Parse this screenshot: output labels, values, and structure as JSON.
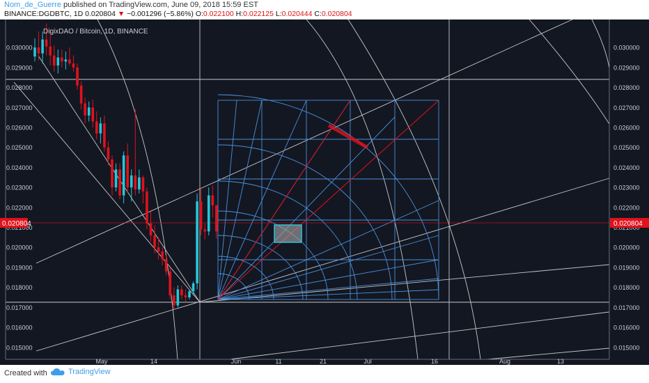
{
  "header": {
    "author": "Nom_de_Guerre",
    "published_text": "published on TradingView.com, June 09, 2018 15:59 EST",
    "symbol": "BINANCE:DGDBTC, 1D",
    "last": "0.020804",
    "change": "−0.001296 (−5.86%)",
    "o_label": "O:",
    "o_value": "0.022100",
    "h_label": "H:",
    "h_value": "0.022125",
    "l_label": "L:",
    "l_value": "0.020444",
    "c_label": "C:",
    "c_value": "0.020804"
  },
  "footer": {
    "created_with": "Created with",
    "brand": "TradingView"
  },
  "colors": {
    "up": "#26c6da",
    "down": "#e0121b",
    "price_line": "#e0121b",
    "fib": "#4a90d9",
    "gann": "#ffffff"
  },
  "chart_data": {
    "type": "candlestick",
    "title": "DigixDAO / Bitcoin, 1D, BINANCE",
    "ylim": [
      0.0144,
      0.0314
    ],
    "y_ticks": [
      "0.030000",
      "0.029000",
      "0.028000",
      "0.027000",
      "0.026000",
      "0.025000",
      "0.024000",
      "0.023000",
      "0.022000",
      "0.021000",
      "0.020000",
      "0.019000",
      "0.018000",
      "0.017000",
      "0.016000",
      "0.015000"
    ],
    "last_price_label": "0.020804",
    "x_ticks": [
      "May",
      "14",
      "Jun",
      "11",
      "21",
      "Jul",
      "16",
      "Aug",
      "13"
    ],
    "candles": [
      {
        "o": 0.02955,
        "h": 0.03045,
        "l": 0.0293,
        "c": 0.03
      },
      {
        "o": 0.03,
        "h": 0.0308,
        "l": 0.02935,
        "c": 0.0297
      },
      {
        "o": 0.0297,
        "h": 0.0308,
        "l": 0.0292,
        "c": 0.0304
      },
      {
        "o": 0.0304,
        "h": 0.0312,
        "l": 0.0296,
        "c": 0.03005
      },
      {
        "o": 0.03005,
        "h": 0.0309,
        "l": 0.0291,
        "c": 0.0296
      },
      {
        "o": 0.0296,
        "h": 0.0301,
        "l": 0.0288,
        "c": 0.0291
      },
      {
        "o": 0.0291,
        "h": 0.0299,
        "l": 0.0287,
        "c": 0.0295
      },
      {
        "o": 0.0295,
        "h": 0.0299,
        "l": 0.029,
        "c": 0.0293
      },
      {
        "o": 0.0293,
        "h": 0.0298,
        "l": 0.0289,
        "c": 0.0294
      },
      {
        "o": 0.0294,
        "h": 0.03,
        "l": 0.0291,
        "c": 0.0292
      },
      {
        "o": 0.0292,
        "h": 0.0296,
        "l": 0.0288,
        "c": 0.029
      },
      {
        "o": 0.029,
        "h": 0.0292,
        "l": 0.0279,
        "c": 0.0281
      },
      {
        "o": 0.0281,
        "h": 0.0283,
        "l": 0.0269,
        "c": 0.0272
      },
      {
        "o": 0.0272,
        "h": 0.0275,
        "l": 0.0262,
        "c": 0.0266
      },
      {
        "o": 0.0266,
        "h": 0.0273,
        "l": 0.0263,
        "c": 0.027
      },
      {
        "o": 0.027,
        "h": 0.0274,
        "l": 0.026,
        "c": 0.0263
      },
      {
        "o": 0.0263,
        "h": 0.0268,
        "l": 0.0254,
        "c": 0.0257
      },
      {
        "o": 0.0257,
        "h": 0.0265,
        "l": 0.0252,
        "c": 0.0262
      },
      {
        "o": 0.0262,
        "h": 0.0266,
        "l": 0.0248,
        "c": 0.025
      },
      {
        "o": 0.025,
        "h": 0.0253,
        "l": 0.0241,
        "c": 0.0244
      },
      {
        "o": 0.0244,
        "h": 0.0246,
        "l": 0.0226,
        "c": 0.023
      },
      {
        "o": 0.023,
        "h": 0.0242,
        "l": 0.0228,
        "c": 0.0239
      },
      {
        "o": 0.0239,
        "h": 0.0242,
        "l": 0.0224,
        "c": 0.0226
      },
      {
        "o": 0.0226,
        "h": 0.0248,
        "l": 0.0222,
        "c": 0.0246
      },
      {
        "o": 0.0246,
        "h": 0.0252,
        "l": 0.0227,
        "c": 0.023
      },
      {
        "o": 0.023,
        "h": 0.0239,
        "l": 0.0223,
        "c": 0.0236
      },
      {
        "o": 0.0236,
        "h": 0.0269,
        "l": 0.0226,
        "c": 0.0229
      },
      {
        "o": 0.0229,
        "h": 0.0239,
        "l": 0.0227,
        "c": 0.0235
      },
      {
        "o": 0.0235,
        "h": 0.0236,
        "l": 0.0222,
        "c": 0.0228
      },
      {
        "o": 0.0228,
        "h": 0.023,
        "l": 0.0209,
        "c": 0.0212
      },
      {
        "o": 0.0212,
        "h": 0.0218,
        "l": 0.0203,
        "c": 0.0206
      },
      {
        "o": 0.0206,
        "h": 0.0211,
        "l": 0.0197,
        "c": 0.02
      },
      {
        "o": 0.02,
        "h": 0.0205,
        "l": 0.0194,
        "c": 0.0198
      },
      {
        "o": 0.0198,
        "h": 0.02,
        "l": 0.0191,
        "c": 0.0194
      },
      {
        "o": 0.0194,
        "h": 0.0196,
        "l": 0.0186,
        "c": 0.0188
      },
      {
        "o": 0.0188,
        "h": 0.019,
        "l": 0.0174,
        "c": 0.0176
      },
      {
        "o": 0.0176,
        "h": 0.018,
        "l": 0.0169,
        "c": 0.0171
      },
      {
        "o": 0.0171,
        "h": 0.0181,
        "l": 0.017,
        "c": 0.0179
      },
      {
        "o": 0.0179,
        "h": 0.0181,
        "l": 0.0174,
        "c": 0.0176
      },
      {
        "o": 0.0176,
        "h": 0.0179,
        "l": 0.0173,
        "c": 0.0175
      },
      {
        "o": 0.0175,
        "h": 0.0179,
        "l": 0.0174,
        "c": 0.0178
      },
      {
        "o": 0.0178,
        "h": 0.0183,
        "l": 0.0176,
        "c": 0.0182
      },
      {
        "o": 0.0182,
        "h": 0.0227,
        "l": 0.0179,
        "c": 0.0223
      },
      {
        "o": 0.0223,
        "h": 0.023,
        "l": 0.0206,
        "c": 0.0209
      },
      {
        "o": 0.0209,
        "h": 0.0212,
        "l": 0.0204,
        "c": 0.0208
      },
      {
        "o": 0.0208,
        "h": 0.023,
        "l": 0.0206,
        "c": 0.0226
      },
      {
        "o": 0.0226,
        "h": 0.0231,
        "l": 0.0215,
        "c": 0.0221
      },
      {
        "o": 0.0221,
        "h": 0.02213,
        "l": 0.02044,
        "c": 0.0208
      }
    ]
  }
}
